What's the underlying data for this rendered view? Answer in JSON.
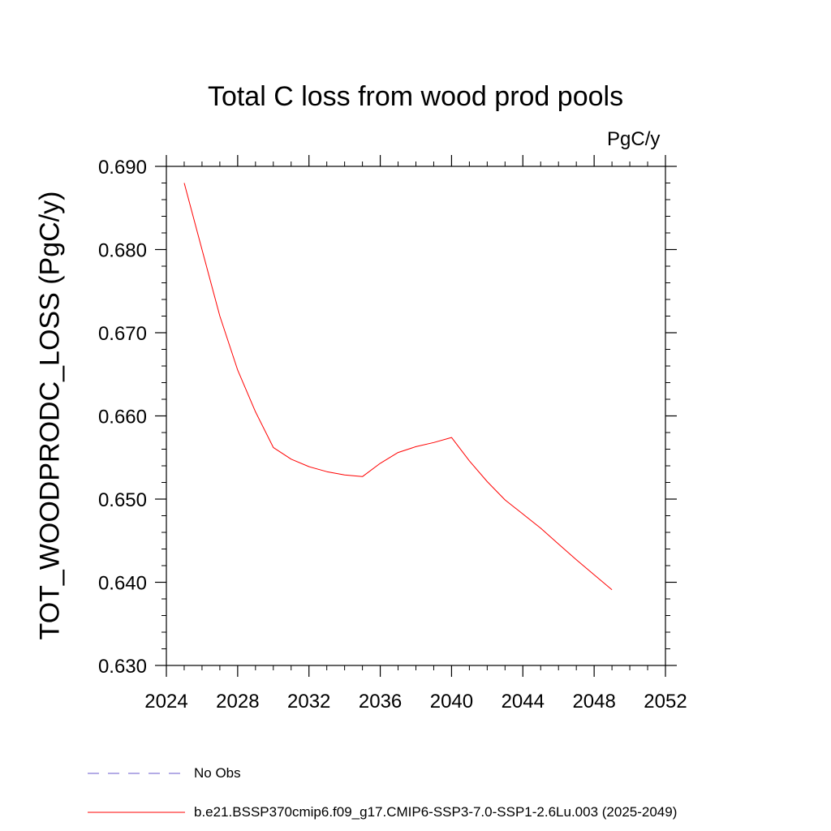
{
  "chart_data": {
    "type": "line",
    "title": "Total C loss from wood prod pools",
    "units": "PgC/y",
    "ylabel": "TOT_WOODPRODC_LOSS  (PgC/y)",
    "xlim": [
      2024,
      2052
    ],
    "ylim": [
      0.63,
      0.69
    ],
    "xticks": [
      2024,
      2028,
      2032,
      2036,
      2040,
      2044,
      2048,
      2052
    ],
    "xtick_labels": [
      "2024",
      "2028",
      "2032",
      "2036",
      "2040",
      "2044",
      "2048",
      "2052"
    ],
    "yticks": [
      0.63,
      0.64,
      0.65,
      0.66,
      0.67,
      0.68,
      0.69
    ],
    "ytick_labels": [
      "0.630",
      "0.640",
      "0.650",
      "0.660",
      "0.670",
      "0.680",
      "0.690"
    ],
    "x": [
      2025,
      2026,
      2027,
      2028,
      2029,
      2030,
      2031,
      2032,
      2033,
      2034,
      2035,
      2036,
      2037,
      2038,
      2039,
      2040,
      2041,
      2042,
      2043,
      2044,
      2045,
      2046,
      2047,
      2048,
      2049
    ],
    "series": [
      {
        "name": "b.e21.BSSP370cmip6.f09_g17.CMIP6-SSP3-7.0-SSP1-2.6Lu.003 (2025-2049)",
        "color": "#ff0000",
        "dash": "solid",
        "values": [
          0.688,
          0.68,
          0.672,
          0.6655,
          0.6605,
          0.6562,
          0.6548,
          0.6539,
          0.6533,
          0.6529,
          0.6527,
          0.6543,
          0.6556,
          0.6563,
          0.6568,
          0.6574,
          0.6546,
          0.6521,
          0.6499,
          0.6482,
          0.6465,
          0.6446,
          0.6427,
          0.6409,
          0.6391
        ]
      }
    ],
    "legend": [
      {
        "label": "No Obs",
        "color": "#6a5acd",
        "dash": "dashed"
      },
      {
        "label": "b.e21.BSSP370cmip6.f09_g17.CMIP6-SSP3-7.0-SSP1-2.6Lu.003 (2025-2049)",
        "color": "#ff0000",
        "dash": "solid"
      }
    ],
    "grid": false,
    "legend_position": "bottom-left"
  }
}
